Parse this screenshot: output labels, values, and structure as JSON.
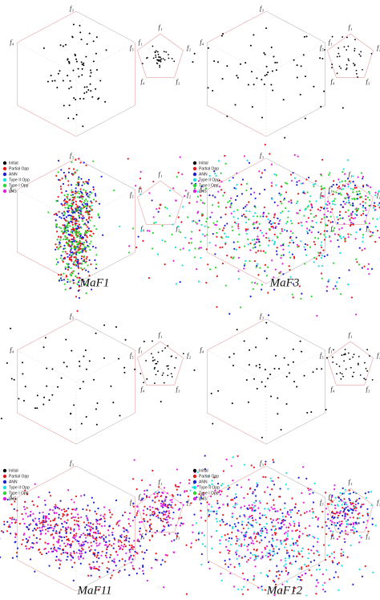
{
  "axis_labels": [
    "f₁",
    "f₂",
    "f₃",
    "f₄",
    "f₅"
  ],
  "legend": [
    {
      "name": "Initial",
      "color": "#000000"
    },
    {
      "name": "Partial Opp",
      "color": "#e41a1c"
    },
    {
      "name": "ANN",
      "color": "#1f1fd6"
    },
    {
      "name": "Type II Opp",
      "color": "#19e0e0"
    },
    {
      "name": "Type I Opp",
      "color": "#2bd62b"
    },
    {
      "name": "LHS",
      "color": "#e01fe0"
    }
  ],
  "figures": [
    {
      "caption": "MaF1"
    },
    {
      "caption": "MaF3"
    },
    {
      "caption": "MaF11"
    },
    {
      "caption": "MaF12"
    }
  ]
}
